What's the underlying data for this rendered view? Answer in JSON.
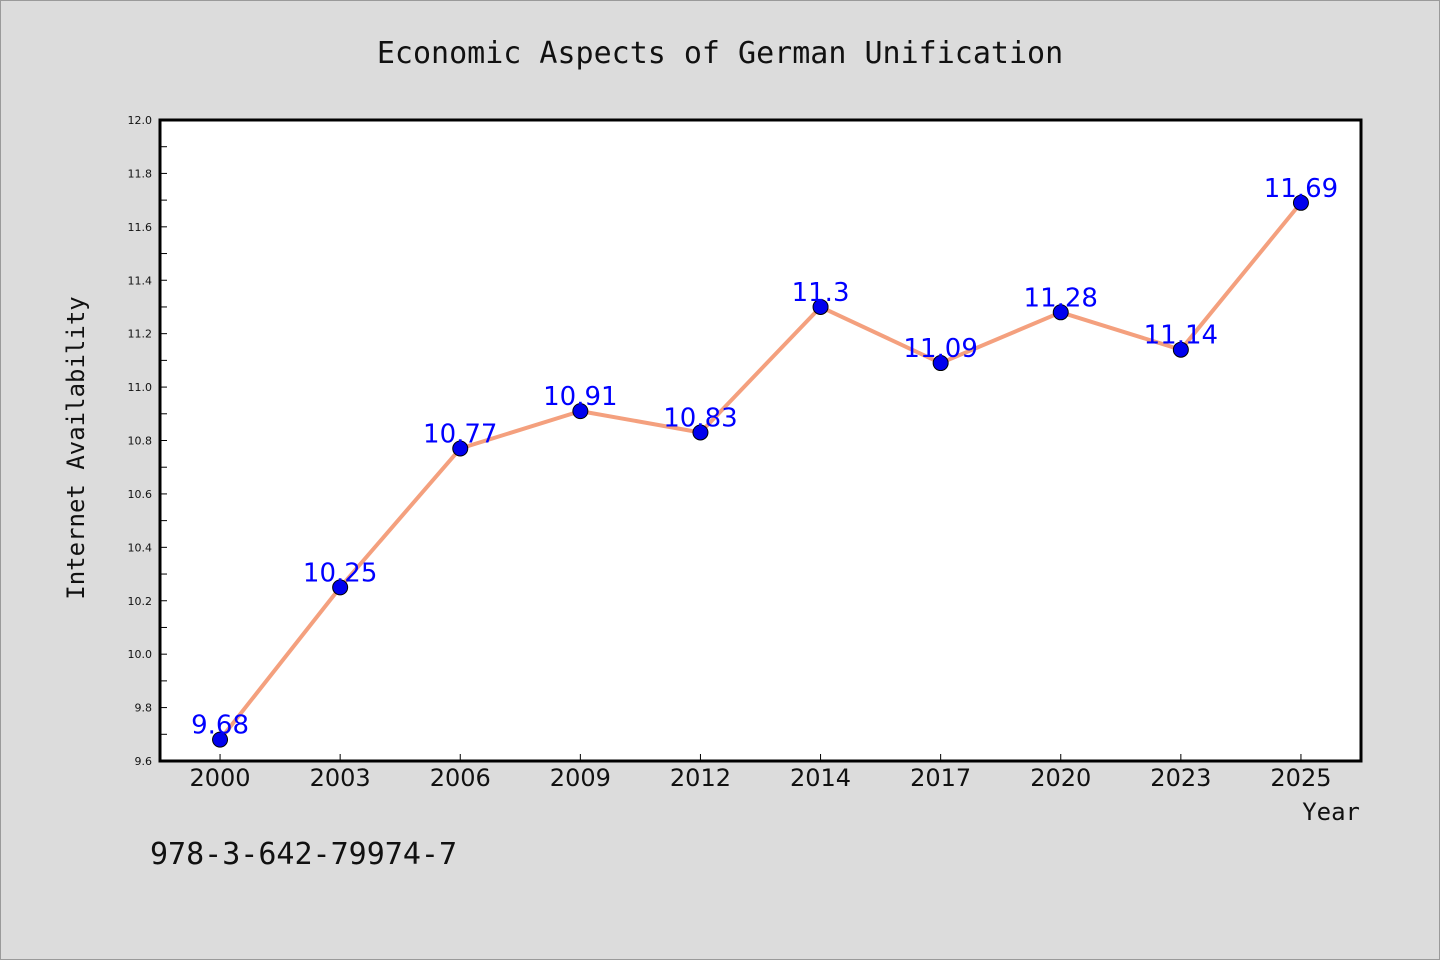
{
  "chart_data": {
    "type": "line",
    "title": "Economic Aspects of German Unification",
    "xlabel": "Year",
    "ylabel": "Internet Availability",
    "categories": [
      "2000",
      "2003",
      "2006",
      "2009",
      "2012",
      "2014",
      "2017",
      "2020",
      "2023",
      "2025"
    ],
    "series": [
      {
        "values": [
          9.68,
          10.25,
          10.77,
          10.91,
          10.83,
          11.3,
          11.09,
          11.28,
          11.14,
          11.69
        ],
        "labels": [
          "9.68",
          "10.25",
          "10.77",
          "10.91",
          "10.83",
          "11.3",
          "11.09",
          "11.28",
          "11.14",
          "11.69"
        ]
      }
    ],
    "ylim": [
      9.6,
      12.0
    ],
    "yticks": [
      "9.6",
      "9.8",
      "10.0",
      "10.2",
      "10.4",
      "10.6",
      "10.8",
      "11.0",
      "11.2",
      "11.4",
      "11.6",
      "11.8",
      "12.0"
    ],
    "grid": false,
    "legend": "none",
    "colors": {
      "line": "#f4a07e",
      "marker": "#0000ee",
      "data_label": "#0000ff",
      "background": "#dcdcdc",
      "plot_background": "#ffffff"
    }
  },
  "footnote": "978-3-642-79974-7"
}
